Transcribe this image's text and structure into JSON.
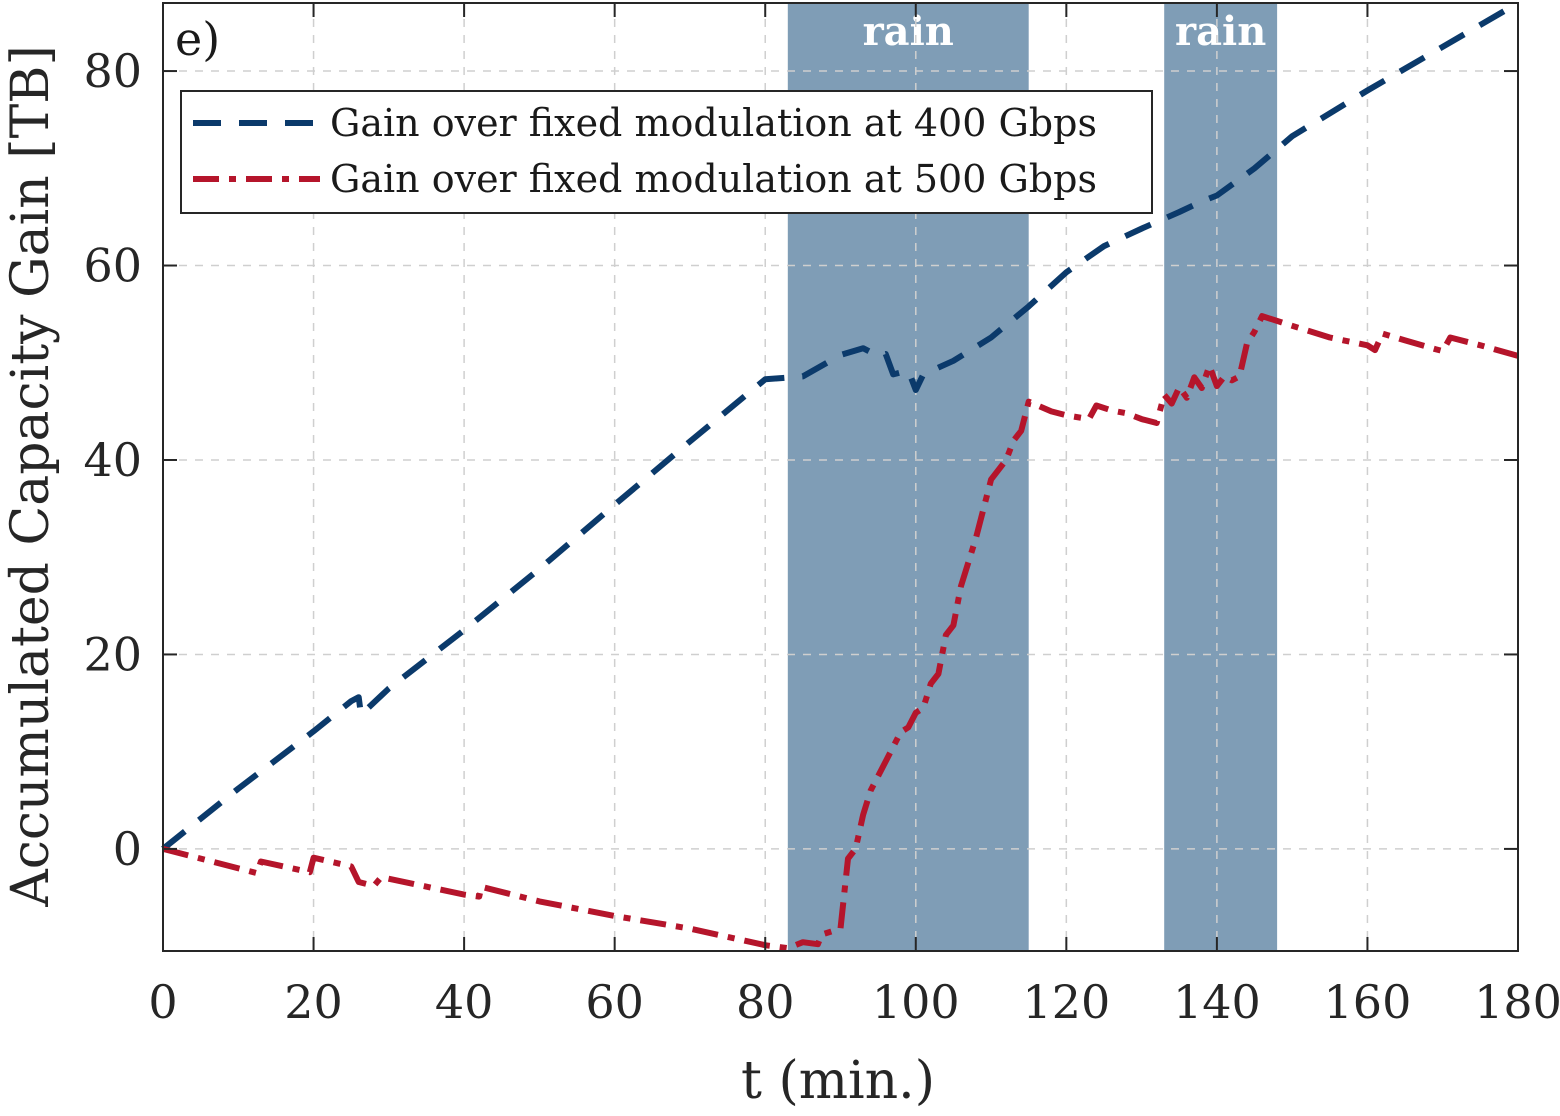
{
  "chart_data": {
    "type": "line",
    "panel_label": "e)",
    "xlabel": "t (min.)",
    "ylabel": "Accumulated Capacity Gain [TB]",
    "xlim": [
      0,
      180
    ],
    "ylim": [
      -10.5,
      87
    ],
    "xticks": [
      0,
      20,
      40,
      60,
      80,
      100,
      120,
      140,
      160,
      180
    ],
    "yticks": [
      0,
      20,
      40,
      60,
      80
    ],
    "grid": true,
    "legend_position": "top-left",
    "shaded_regions": [
      {
        "label": "rain",
        "x": [
          83,
          115
        ],
        "color": "#7f9db6"
      },
      {
        "label": "rain",
        "x": [
          133,
          148
        ],
        "color": "#7f9db6"
      }
    ],
    "series": [
      {
        "name": "Gain over fixed modulation at 400 Gbps",
        "color": "#0b3a6b",
        "style": "dashed",
        "x": [
          0,
          10,
          20,
          25,
          26,
          26.3,
          30,
          40,
          50,
          60,
          70,
          80,
          85,
          90,
          93,
          95,
          96,
          97,
          99,
          100,
          101,
          105,
          110,
          115,
          120,
          125,
          130,
          135,
          138,
          140,
          145,
          150,
          160,
          170,
          180
        ],
        "y": [
          0,
          6.2,
          12.1,
          15.2,
          15.6,
          13.8,
          16.5,
          22.5,
          28.8,
          35.4,
          41.9,
          48.3,
          48.6,
          50.8,
          51.5,
          50.7,
          50.9,
          48.8,
          49.2,
          47.2,
          48.8,
          50.2,
          52.6,
          55.8,
          59.3,
          62.0,
          63.8,
          65.5,
          66.6,
          67.2,
          70.0,
          73.3,
          78.0,
          82.5,
          87.0
        ]
      },
      {
        "name": "Gain over fixed modulation at 500 Gbps",
        "color": "#b5152b",
        "style": "dashdot",
        "x": [
          0,
          12.5,
          13,
          19.5,
          20,
          25,
          26,
          28,
          29,
          40,
          42,
          42.3,
          50,
          60,
          70,
          80,
          83,
          85,
          87,
          87.5,
          90,
          91,
          92,
          93,
          94,
          96,
          98,
          99,
          100,
          101,
          102,
          103,
          104,
          105,
          106,
          108,
          110,
          112,
          113,
          114,
          115,
          118,
          120,
          123,
          124,
          126,
          128,
          130,
          132,
          133,
          134,
          135,
          136,
          137,
          138,
          139,
          140,
          141,
          142,
          143,
          144,
          145,
          146,
          150,
          155,
          160,
          161,
          162,
          165,
          169,
          170,
          171,
          175,
          180
        ],
        "y": [
          0,
          -2.5,
          -1.3,
          -2.4,
          -0.9,
          -1.8,
          -3.4,
          -3.8,
          -2.9,
          -4.7,
          -4.9,
          -3.9,
          -5.4,
          -6.9,
          -8.2,
          -9.9,
          -10.2,
          -9.6,
          -9.8,
          -8.8,
          -8.2,
          -1.0,
          0.0,
          3.5,
          6.0,
          9.0,
          12.0,
          12.5,
          14.0,
          14.5,
          17.0,
          18.0,
          22.0,
          23.0,
          27.0,
          32.0,
          38.0,
          40.0,
          42.0,
          43.0,
          46.0,
          45.0,
          44.6,
          44.2,
          45.6,
          45.1,
          44.8,
          44.2,
          43.8,
          46.7,
          45.8,
          47.5,
          46.4,
          48.5,
          47.4,
          49.7,
          47.6,
          48.6,
          48.2,
          48.6,
          52.0,
          53.2,
          54.8,
          53.8,
          52.6,
          51.8,
          51.3,
          53.0,
          52.3,
          51.4,
          51.2,
          52.6,
          51.8,
          50.7
        ]
      }
    ]
  }
}
